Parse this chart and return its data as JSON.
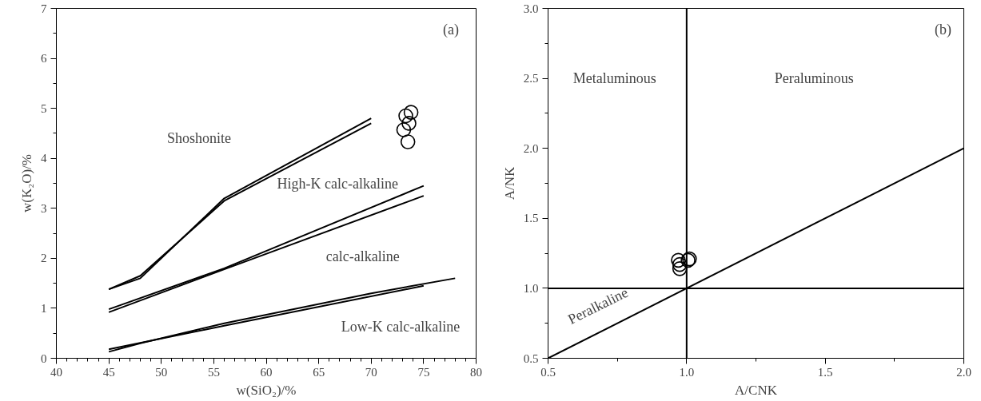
{
  "chart_data": [
    {
      "type": "scatter",
      "xlabel": "w(SiO₂)/%",
      "ylabel": "w(K₂O)/%",
      "xlim": [
        40,
        80
      ],
      "ylim": [
        0,
        7
      ],
      "xticks": [
        40,
        {
          "value": 41,
          "label": null
        },
        {
          "value": 42,
          "label": null
        },
        {
          "value": 43,
          "label": null
        },
        {
          "value": 44,
          "label": null
        },
        45,
        {
          "value": 46,
          "label": null
        },
        {
          "value": 47,
          "label": null
        },
        {
          "value": 48,
          "label": null
        },
        {
          "value": 49,
          "label": null
        },
        50,
        {
          "value": 51,
          "label": null
        },
        {
          "value": 52,
          "label": null
        },
        {
          "value": 53,
          "label": null
        },
        {
          "value": 54,
          "label": null
        },
        55,
        {
          "value": 56,
          "label": null
        },
        {
          "value": 57,
          "label": null
        },
        {
          "value": 58,
          "label": null
        },
        {
          "value": 59,
          "label": null
        },
        60,
        {
          "value": 61,
          "label": null
        },
        {
          "value": 62,
          "label": null
        },
        {
          "value": 63,
          "label": null
        },
        {
          "value": 64,
          "label": null
        },
        65,
        {
          "value": 66,
          "label": null
        },
        {
          "value": 67,
          "label": null
        },
        {
          "value": 68,
          "label": null
        },
        {
          "value": 69,
          "label": null
        },
        70,
        {
          "value": 71,
          "label": null
        },
        {
          "value": 72,
          "label": null
        },
        {
          "value": 73,
          "label": null
        },
        {
          "value": 74,
          "label": null
        },
        75,
        {
          "value": 76,
          "label": null
        },
        {
          "value": 77,
          "label": null
        },
        {
          "value": 78,
          "label": null
        },
        {
          "value": 79,
          "label": null
        },
        80
      ],
      "yticks": [
        0,
        {
          "value": 0.5,
          "label": null
        },
        1,
        {
          "value": 1.5,
          "label": null
        },
        2,
        {
          "value": 2.5,
          "label": null
        },
        3,
        {
          "value": 3.5,
          "label": null
        },
        4,
        {
          "value": 4.5,
          "label": null
        },
        5,
        {
          "value": 5.5,
          "label": null
        },
        6,
        {
          "value": 6.5,
          "label": null
        },
        7
      ],
      "grid": false,
      "series": [
        {
          "marker": "circle",
          "color": "#000000",
          "x": [
            73.8,
            73.3,
            73.6,
            73.1,
            73.5
          ],
          "values": [
            4.92,
            4.85,
            4.7,
            4.57,
            4.33
          ]
        },
        {
          "type": "line",
          "color": "#000000",
          "x": [
            45,
            48,
            56,
            70
          ],
          "values": [
            1.38,
            1.6,
            3.2,
            4.8
          ]
        },
        {
          "type": "line",
          "color": "#000000",
          "x": [
            45,
            48,
            56,
            70
          ],
          "values": [
            1.38,
            1.65,
            3.15,
            4.7
          ]
        },
        {
          "type": "line",
          "color": "#000000",
          "x": [
            45,
            56,
            75
          ],
          "values": [
            0.98,
            1.8,
            3.45
          ]
        },
        {
          "type": "line",
          "color": "#000000",
          "x": [
            45,
            56,
            75
          ],
          "values": [
            0.92,
            1.78,
            3.25
          ]
        },
        {
          "type": "line",
          "color": "#000000",
          "x": [
            45,
            48,
            56,
            70,
            78
          ],
          "values": [
            0.13,
            0.3,
            0.7,
            1.3,
            1.6
          ]
        },
        {
          "type": "line",
          "color": "#000000",
          "x": [
            45,
            56,
            75
          ],
          "values": [
            0.18,
            0.65,
            1.45
          ]
        }
      ],
      "annotations": [
        "(a)",
        "Shoshonite",
        "High-K calc-alkaline",
        "calc-alkaline",
        "Low-K calc-alkaline"
      ]
    },
    {
      "type": "scatter",
      "xlabel": "A/CNK",
      "ylabel": "A/NK",
      "xlim": [
        0.5,
        2.0
      ],
      "ylim": [
        0.5,
        3.0
      ],
      "xticks": [
        {
          "value": 0.5,
          "label": "0.5"
        },
        {
          "value": 0.75,
          "label": null
        },
        {
          "value": 1,
          "label": "1.0"
        },
        {
          "value": 1.25,
          "label": null
        },
        {
          "value": 1.5,
          "label": "1.5"
        },
        {
          "value": 1.75,
          "label": null
        },
        {
          "value": 2,
          "label": "2.0"
        }
      ],
      "yticks": [
        {
          "value": 0.5,
          "label": "0.5"
        },
        {
          "value": 0.75,
          "label": null
        },
        {
          "value": 1,
          "label": "1.0"
        },
        {
          "value": 1.25,
          "label": null
        },
        {
          "value": 1.5,
          "label": "1.5"
        },
        {
          "value": 1.75,
          "label": null
        },
        {
          "value": 2,
          "label": "2.0"
        },
        {
          "value": 2.25,
          "label": null
        },
        {
          "value": 2.5,
          "label": "2.5"
        },
        {
          "value": 2.75,
          "label": null
        },
        {
          "value": 3,
          "label": "3.0"
        }
      ],
      "grid": false,
      "series": [
        {
          "type": "line",
          "color": "#000000",
          "x": [
            1,
            1
          ],
          "values": [
            0.5,
            3.0
          ]
        },
        {
          "type": "line",
          "color": "#000000",
          "x": [
            0.5,
            2.0
          ],
          "values": [
            1,
            1
          ]
        },
        {
          "marker": "circle",
          "color": "#000000",
          "x": [
            0.97,
            0.975,
            0.975,
            1.01,
            1.005
          ],
          "values": [
            1.2,
            1.17,
            1.14,
            1.21,
            1.2
          ]
        },
        {
          "type": "line",
          "color": "#000000",
          "x": [
            0.5,
            2.0
          ],
          "values": [
            0.5,
            2.0
          ]
        }
      ],
      "annotations": [
        "(b)",
        "Metaluminous",
        "Peraluminous",
        "Peralkaline"
      ]
    }
  ]
}
